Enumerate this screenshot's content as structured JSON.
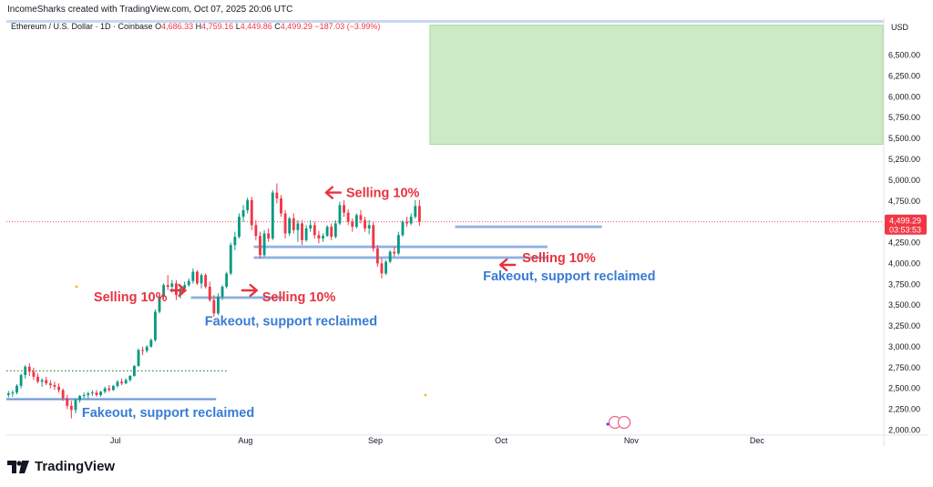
{
  "header": {
    "credit": "IncomeSharks created with TradingView.com, Oct 07, 2025 20:06 UTC"
  },
  "legend": {
    "symbol": "Ethereum / U.S. Dollar · 1D · Coinbase",
    "o_label": "O",
    "o": "4,686.33",
    "h_label": "H",
    "h": "4,759.16",
    "l_label": "L",
    "l": "4,449.86",
    "c_label": "C",
    "c": "4,499.29",
    "change": "−187.03 (−3.99%)"
  },
  "currency": "USD",
  "price_tag": {
    "price": "4,499.29",
    "countdown": "03:53:53"
  },
  "brand": "TradingView",
  "colors": {
    "up": "#089981",
    "down": "#f23645",
    "annotation_red": "#e8323f",
    "annotation_blue": "#3a7bd5",
    "zone": "#ccebc4",
    "support": "#a9c4ea"
  },
  "annotations": [
    {
      "key": "sell_1",
      "text": "Selling 10%",
      "date": "2025-07-19",
      "price": 3600,
      "color": "red"
    },
    {
      "key": "sell_2",
      "text": "Selling 10%",
      "date": "2025-08-05",
      "price": 3600,
      "color": "red"
    },
    {
      "key": "sell_3",
      "text": "Selling 10%",
      "date": "2025-08-25",
      "price": 4850,
      "color": "red"
    },
    {
      "key": "sell_4",
      "text": "Selling 10%",
      "date": "2025-10-06",
      "price": 4070,
      "color": "red"
    },
    {
      "key": "fake_1",
      "text": "Fakeout, support reclaimed",
      "date": "2025-06-23",
      "price": 2210,
      "color": "blue"
    },
    {
      "key": "fake_2",
      "text": "Fakeout, support reclaimed",
      "date": "2025-07-31",
      "price": 3310,
      "color": "blue"
    },
    {
      "key": "fake_3",
      "text": "Fakeout, support reclaimed",
      "date": "2025-10-01",
      "price": 3850,
      "color": "blue"
    }
  ],
  "chart_data": {
    "type": "candlestick",
    "y_scale": "linear",
    "ylim": [
      1950,
      6900
    ],
    "y_ticks": [
      2000,
      2250,
      2500,
      2750,
      3000,
      3250,
      3500,
      3750,
      4000,
      4250,
      4500,
      4750,
      5000,
      5250,
      5500,
      5750,
      6000,
      6250,
      6500
    ],
    "y_tick_labels": [
      "2,000.00",
      "2,250.00",
      "2,500.00",
      "2,750.00",
      "3,000.00",
      "3,250.00",
      "3,500.00",
      "3,750.00",
      "4,000.00",
      "4,250.00",
      "4,500.00",
      "4,750.00",
      "5,000.00",
      "5,250.00",
      "5,500.00",
      "5,750.00",
      "6,000.00",
      "6,250.00",
      "6,500.00"
    ],
    "xlim": [
      "2025-06-05",
      "2025-12-31"
    ],
    "x_ticks": [
      {
        "label": "Jul",
        "date": "2025-07-01"
      },
      {
        "label": "Aug",
        "date": "2025-08-01"
      },
      {
        "label": "Sep",
        "date": "2025-09-01"
      },
      {
        "label": "Oct",
        "date": "2025-10-01"
      },
      {
        "label": "Nov",
        "date": "2025-11-01"
      },
      {
        "label": "Dec",
        "date": "2025-12-01"
      }
    ],
    "start_date": "2025-06-05",
    "candles": [
      [
        2420,
        2470,
        2390,
        2440
      ],
      [
        2440,
        2480,
        2400,
        2450
      ],
      [
        2450,
        2550,
        2430,
        2530
      ],
      [
        2530,
        2680,
        2500,
        2660
      ],
      [
        2660,
        2780,
        2620,
        2760
      ],
      [
        2760,
        2800,
        2650,
        2700
      ],
      [
        2700,
        2750,
        2600,
        2640
      ],
      [
        2640,
        2680,
        2560,
        2580
      ],
      [
        2580,
        2620,
        2520,
        2600
      ],
      [
        2600,
        2640,
        2540,
        2560
      ],
      [
        2560,
        2600,
        2500,
        2540
      ],
      [
        2540,
        2580,
        2480,
        2520
      ],
      [
        2520,
        2560,
        2450,
        2480
      ],
      [
        2480,
        2500,
        2350,
        2380
      ],
      [
        2380,
        2420,
        2250,
        2290
      ],
      [
        2290,
        2350,
        2140,
        2240
      ],
      [
        2240,
        2380,
        2200,
        2360
      ],
      [
        2360,
        2420,
        2330,
        2410
      ],
      [
        2410,
        2450,
        2380,
        2420
      ],
      [
        2420,
        2460,
        2380,
        2440
      ],
      [
        2440,
        2480,
        2410,
        2450
      ],
      [
        2450,
        2480,
        2400,
        2420
      ],
      [
        2420,
        2470,
        2400,
        2460
      ],
      [
        2460,
        2520,
        2440,
        2500
      ],
      [
        2500,
        2540,
        2460,
        2480
      ],
      [
        2480,
        2540,
        2470,
        2530
      ],
      [
        2530,
        2600,
        2510,
        2580
      ],
      [
        2580,
        2620,
        2540,
        2560
      ],
      [
        2560,
        2620,
        2550,
        2600
      ],
      [
        2600,
        2660,
        2580,
        2650
      ],
      [
        2650,
        2780,
        2640,
        2770
      ],
      [
        2770,
        2980,
        2760,
        2960
      ],
      [
        2960,
        3000,
        2900,
        2950
      ],
      [
        2950,
        3020,
        2930,
        3000
      ],
      [
        3000,
        3100,
        2990,
        3080
      ],
      [
        3080,
        3450,
        3060,
        3420
      ],
      [
        3420,
        3620,
        3400,
        3600
      ],
      [
        3600,
        3760,
        3580,
        3740
      ],
      [
        3740,
        3860,
        3680,
        3720
      ],
      [
        3720,
        3800,
        3650,
        3760
      ],
      [
        3760,
        3800,
        3560,
        3620
      ],
      [
        3620,
        3720,
        3580,
        3700
      ],
      [
        3700,
        3780,
        3660,
        3740
      ],
      [
        3740,
        3820,
        3720,
        3790
      ],
      [
        3790,
        3940,
        3760,
        3900
      ],
      [
        3900,
        3920,
        3740,
        3760
      ],
      [
        3760,
        3880,
        3700,
        3860
      ],
      [
        3860,
        3880,
        3700,
        3720
      ],
      [
        3720,
        3780,
        3540,
        3560
      ],
      [
        3560,
        3620,
        3360,
        3400
      ],
      [
        3400,
        3640,
        3380,
        3600
      ],
      [
        3600,
        3740,
        3560,
        3720
      ],
      [
        3720,
        3900,
        3700,
        3880
      ],
      [
        3880,
        4250,
        3860,
        4220
      ],
      [
        4220,
        4380,
        4160,
        4320
      ],
      [
        4320,
        4600,
        4300,
        4560
      ],
      [
        4560,
        4700,
        4500,
        4640
      ],
      [
        4640,
        4790,
        4600,
        4760
      ],
      [
        4760,
        4800,
        4400,
        4460
      ],
      [
        4460,
        4520,
        4280,
        4330
      ],
      [
        4330,
        4380,
        4060,
        4100
      ],
      [
        4100,
        4400,
        4080,
        4360
      ],
      [
        4360,
        4420,
        4260,
        4300
      ],
      [
        4300,
        4880,
        4280,
        4850
      ],
      [
        4850,
        4960,
        4720,
        4780
      ],
      [
        4780,
        4820,
        4560,
        4600
      ],
      [
        4600,
        4640,
        4300,
        4360
      ],
      [
        4360,
        4560,
        4330,
        4540
      ],
      [
        4540,
        4600,
        4360,
        4400
      ],
      [
        4400,
        4520,
        4260,
        4480
      ],
      [
        4480,
        4520,
        4220,
        4280
      ],
      [
        4280,
        4460,
        4260,
        4420
      ],
      [
        4420,
        4520,
        4380,
        4460
      ],
      [
        4460,
        4500,
        4300,
        4340
      ],
      [
        4340,
        4390,
        4240,
        4300
      ],
      [
        4300,
        4360,
        4260,
        4330
      ],
      [
        4330,
        4460,
        4320,
        4440
      ],
      [
        4440,
        4480,
        4280,
        4320
      ],
      [
        4320,
        4520,
        4300,
        4480
      ],
      [
        4480,
        4740,
        4460,
        4700
      ],
      [
        4700,
        4760,
        4560,
        4610
      ],
      [
        4610,
        4650,
        4460,
        4500
      ],
      [
        4500,
        4540,
        4380,
        4440
      ],
      [
        4440,
        4600,
        4420,
        4580
      ],
      [
        4580,
        4640,
        4480,
        4520
      ],
      [
        4520,
        4560,
        4380,
        4420
      ],
      [
        4420,
        4520,
        4350,
        4460
      ],
      [
        4460,
        4500,
        4140,
        4180
      ],
      [
        4180,
        4220,
        3960,
        4000
      ],
      [
        4000,
        4060,
        3820,
        3880
      ],
      [
        3880,
        4040,
        3860,
        4020
      ],
      [
        4020,
        4160,
        4000,
        4140
      ],
      [
        4140,
        4200,
        4080,
        4120
      ],
      [
        4120,
        4380,
        4100,
        4340
      ],
      [
        4340,
        4520,
        4320,
        4500
      ],
      [
        4500,
        4560,
        4440,
        4480
      ],
      [
        4480,
        4600,
        4460,
        4560
      ],
      [
        4560,
        4760,
        4540,
        4690
      ],
      [
        4690,
        4760,
        4450,
        4499.29
      ]
    ],
    "support_levels": [
      {
        "price": 2370,
        "from": "2025-06-05",
        "to": "2025-07-25"
      },
      {
        "price": 3590,
        "from": "2025-07-19",
        "to": "2025-08-10"
      },
      {
        "price": 4200,
        "from": "2025-08-03",
        "to": "2025-10-12"
      },
      {
        "price": 4070,
        "from": "2025-08-03",
        "to": "2025-10-12"
      },
      {
        "price": 4440,
        "from": "2025-09-20",
        "to": "2025-10-25"
      }
    ],
    "resistance_dotted": {
      "price": 2710,
      "from": "2025-06-05",
      "to": "2025-07-28"
    },
    "current_price_line": 4499.29,
    "target_zone": {
      "price_top": 6860,
      "price_bottom": 5430,
      "from": "2025-09-14",
      "to": "2025-12-31"
    }
  }
}
